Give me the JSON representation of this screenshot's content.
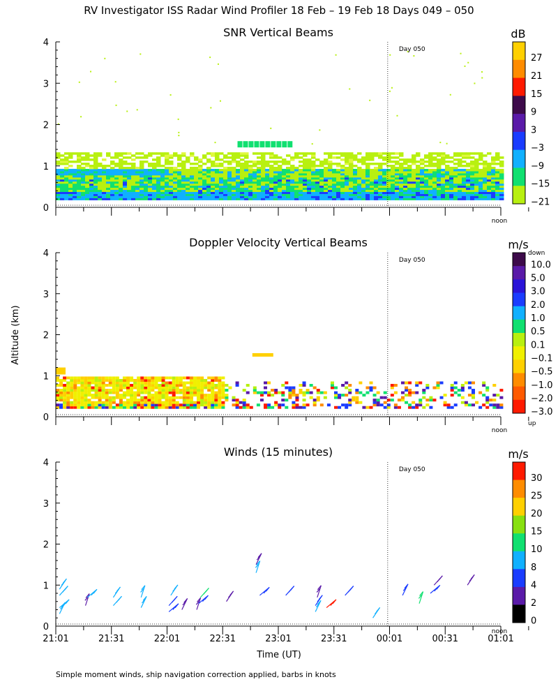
{
  "figure": {
    "title": "RV Investigator ISS Radar Wind Profiler  18 Feb – 19 Feb 18 Days 049 – 050",
    "footnote": "Simple moment winds, ship navigation correction applied, barbs in knots",
    "ylabel": "Altitude (km)",
    "xlabel": "Time (UT)",
    "x_tick_labels": [
      "21:01",
      "21:31",
      "22:01",
      "22:31",
      "23:01",
      "23:31",
      "00:01",
      "00:31",
      "01:01"
    ],
    "y_tick_labels": [
      "0",
      "1",
      "2",
      "3",
      "4"
    ],
    "day_marker_label": "Day 050",
    "noon_label": "noon"
  },
  "chart_data": [
    {
      "type": "heatmap",
      "title": "SNR Vertical Beams",
      "colorbar_unit": "dB",
      "colorbar_ticks": [
        "27",
        "21",
        "15",
        "9",
        "3",
        "−3",
        "−9",
        "−15",
        "−21"
      ],
      "colorbar_colors": [
        "#ffd000",
        "#ff8c00",
        "#ff1a00",
        "#3d0a4a",
        "#5a1aa8",
        "#1a3cff",
        "#10b0ff",
        "#10e070",
        "#b8f010"
      ],
      "x_range_minutes": [
        0,
        240
      ],
      "ylim_km": [
        0,
        4
      ],
      "day_marker_minutes": 179,
      "layers": [
        {
          "top_km": 1.3,
          "color": "#b8f010"
        },
        {
          "top_km": 0.9,
          "color": "#10e070"
        },
        {
          "top_km": 0.7,
          "color": "#10b0ff"
        },
        {
          "top_km": 0.35,
          "color": "#1a3cff"
        }
      ]
    },
    {
      "type": "heatmap",
      "title": "Doppler Velocity Vertical Beams",
      "colorbar_unit": "m/s",
      "colorbar_top_label": "down",
      "colorbar_bottom_label": "up",
      "colorbar_ticks": [
        "10.0",
        "5.0",
        "3.0",
        "2.0",
        "1.0",
        "0.5",
        "0.1",
        "−0.1",
        "−0.5",
        "−1.0",
        "−2.0",
        "−3.0"
      ],
      "colorbar_colors": [
        "#3d0a4a",
        "#5a1aa8",
        "#2a14d8",
        "#1a3cff",
        "#10b0ff",
        "#10e070",
        "#b8f010",
        "#f0f000",
        "#ffd000",
        "#ff8c00",
        "#ff5a00",
        "#ff1a00"
      ],
      "x_range_minutes": [
        0,
        240
      ],
      "ylim_km": [
        0,
        4
      ],
      "day_marker_minutes": 179,
      "echo_top_km": 0.95
    },
    {
      "type": "scatter",
      "title": "Winds (15 minutes)",
      "colorbar_unit": "m/s",
      "colorbar_ticks": [
        "30",
        "25",
        "20",
        "15",
        "10",
        "8",
        "4",
        "2",
        "0"
      ],
      "colorbar_colors": [
        "#ff1a00",
        "#ff8c00",
        "#ffd000",
        "#88e010",
        "#10e070",
        "#10b0ff",
        "#1a3cff",
        "#5a1aa8",
        "#000000"
      ],
      "x_range_minutes": [
        0,
        240
      ],
      "ylim_km": [
        0,
        4
      ],
      "day_marker_minutes": 179,
      "barbs": [
        {
          "t": 2,
          "alt": 0.45,
          "color": "#10b0ff"
        },
        {
          "t": 2,
          "alt": 0.75,
          "color": "#10b0ff"
        },
        {
          "t": 2,
          "alt": 0.9,
          "color": "#10b0ff"
        },
        {
          "t": 2,
          "alt": 0.3,
          "color": "#10b0ff"
        },
        {
          "t": 16,
          "alt": 0.5,
          "color": "#5a1aa8"
        },
        {
          "t": 17,
          "alt": 0.7,
          "color": "#10b0ff"
        },
        {
          "t": 31,
          "alt": 0.5,
          "color": "#10b0ff"
        },
        {
          "t": 31,
          "alt": 0.7,
          "color": "#10b0ff"
        },
        {
          "t": 46,
          "alt": 0.45,
          "color": "#10b0ff"
        },
        {
          "t": 46,
          "alt": 0.7,
          "color": "#10b0ff"
        },
        {
          "t": 61,
          "alt": 0.35,
          "color": "#1a3cff"
        },
        {
          "t": 61,
          "alt": 0.5,
          "color": "#1a3cff"
        },
        {
          "t": 62,
          "alt": 0.75,
          "color": "#10b0ff"
        },
        {
          "t": 68,
          "alt": 0.4,
          "color": "#5a1aa8"
        },
        {
          "t": 76,
          "alt": 0.4,
          "color": "#5a1aa8"
        },
        {
          "t": 77,
          "alt": 0.55,
          "color": "#1a3cff"
        },
        {
          "t": 78,
          "alt": 0.7,
          "color": "#10e070"
        },
        {
          "t": 92,
          "alt": 0.6,
          "color": "#5a1aa8"
        },
        {
          "t": 108,
          "alt": 1.5,
          "color": "#5a1aa8"
        },
        {
          "t": 108,
          "alt": 1.3,
          "color": "#10b0ff"
        },
        {
          "t": 110,
          "alt": 0.75,
          "color": "#1a3cff"
        },
        {
          "t": 124,
          "alt": 0.75,
          "color": "#1a3cff"
        },
        {
          "t": 140,
          "alt": 0.5,
          "color": "#1a3cff"
        },
        {
          "t": 140,
          "alt": 0.35,
          "color": "#10b0ff"
        },
        {
          "t": 141,
          "alt": 0.7,
          "color": "#5a1aa8"
        },
        {
          "t": 146,
          "alt": 0.45,
          "color": "#ff1a00"
        },
        {
          "t": 156,
          "alt": 0.75,
          "color": "#1a3cff"
        },
        {
          "t": 171,
          "alt": 0.2,
          "color": "#10b0ff"
        },
        {
          "t": 187,
          "alt": 0.75,
          "color": "#1a3cff"
        },
        {
          "t": 196,
          "alt": 0.55,
          "color": "#10e070"
        },
        {
          "t": 202,
          "alt": 0.8,
          "color": "#1a3cff"
        },
        {
          "t": 204,
          "alt": 1.0,
          "color": "#5a1aa8"
        },
        {
          "t": 222,
          "alt": 1.0,
          "color": "#5a1aa8"
        }
      ]
    }
  ]
}
